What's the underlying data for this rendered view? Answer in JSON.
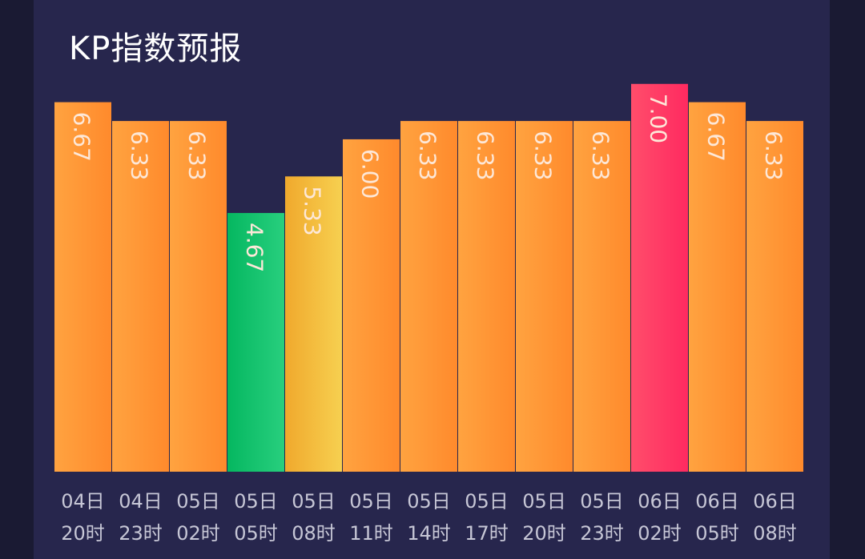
{
  "title": "KP指数预报",
  "colors": {
    "background": "#27264d",
    "bar_orange_light": "#ffa340",
    "bar_orange_dark": "#ff8a2c",
    "bar_green_light": "#05b760",
    "bar_green_dark": "#28cf7e",
    "bar_yellow_light": "#f0a92d",
    "bar_yellow_dark": "#f7d050",
    "bar_pink_light": "#ff4d6b",
    "bar_pink_dark": "#ff2a60",
    "value_text": "#fde8d8",
    "axis_text": "#c7c7d6"
  },
  "chart_data": {
    "type": "bar",
    "categories": [
      [
        "04日",
        "20时"
      ],
      [
        "04日",
        "23时"
      ],
      [
        "05日",
        "02时"
      ],
      [
        "05日",
        "05时"
      ],
      [
        "05日",
        "08时"
      ],
      [
        "05日",
        "11时"
      ],
      [
        "05日",
        "14时"
      ],
      [
        "05日",
        "17时"
      ],
      [
        "05日",
        "20时"
      ],
      [
        "05日",
        "23时"
      ],
      [
        "06日",
        "02时"
      ],
      [
        "06日",
        "05时"
      ],
      [
        "06日",
        "08时"
      ]
    ],
    "values": [
      6.67,
      6.33,
      6.33,
      4.67,
      5.33,
      6.0,
      6.33,
      6.33,
      6.33,
      6.33,
      7.0,
      6.67,
      6.33
    ],
    "value_labels": [
      "6.67",
      "6.33",
      "6.33",
      "4.67",
      "5.33",
      "6.00",
      "6.33",
      "6.33",
      "6.33",
      "6.33",
      "7.00",
      "6.67",
      "6.33"
    ],
    "color_levels": [
      "orange",
      "orange",
      "orange",
      "green",
      "yellow",
      "orange",
      "orange",
      "orange",
      "orange",
      "orange",
      "pink",
      "orange",
      "orange"
    ],
    "ylim": [
      0,
      7.3
    ],
    "grid": false,
    "legend": "none"
  }
}
